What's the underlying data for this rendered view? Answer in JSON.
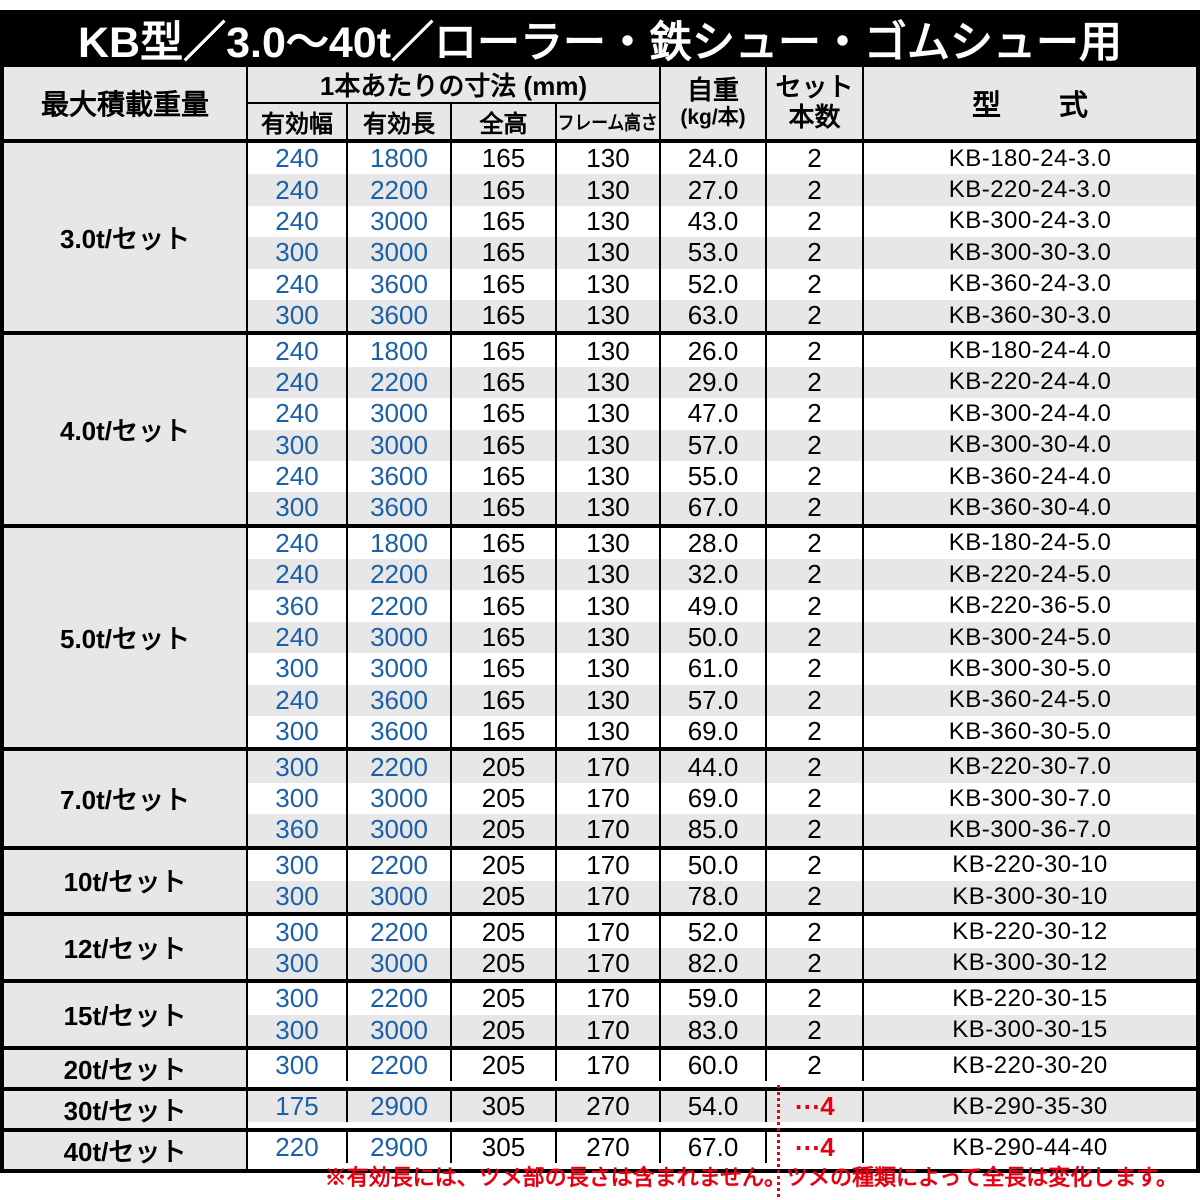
{
  "title": "KB型／3.0〜40t／ローラー・鉄シュー・ゴムシュー用",
  "table": {
    "headers": {
      "max_load": "最大積載重量",
      "dims_group": "1本あたりの寸法 (mm)",
      "eff_width": "有効幅",
      "eff_length": "有効長",
      "total_height": "全高",
      "frame_height": "フレーム高さ",
      "unit_weight_line1": "自重",
      "unit_weight_line2": "(kg/本)",
      "set_qty_line1": "セット",
      "set_qty_line2": "本数",
      "model": "型　　式"
    },
    "annotation_leader": "⋯",
    "sections": [
      {
        "label": "3.0t/セット",
        "rows": [
          {
            "w": "240",
            "l": "1800",
            "h": "165",
            "f": "130",
            "kg": "24.0",
            "qty": "2",
            "model": "KB-180-24-3.0"
          },
          {
            "w": "240",
            "l": "2200",
            "h": "165",
            "f": "130",
            "kg": "27.0",
            "qty": "2",
            "model": "KB-220-24-3.0"
          },
          {
            "w": "240",
            "l": "3000",
            "h": "165",
            "f": "130",
            "kg": "43.0",
            "qty": "2",
            "model": "KB-300-24-3.0"
          },
          {
            "w": "300",
            "l": "3000",
            "h": "165",
            "f": "130",
            "kg": "53.0",
            "qty": "2",
            "model": "KB-300-30-3.0"
          },
          {
            "w": "240",
            "l": "3600",
            "h": "165",
            "f": "130",
            "kg": "52.0",
            "qty": "2",
            "model": "KB-360-24-3.0"
          },
          {
            "w": "300",
            "l": "3600",
            "h": "165",
            "f": "130",
            "kg": "63.0",
            "qty": "2",
            "model": "KB-360-30-3.0"
          }
        ]
      },
      {
        "label": "4.0t/セット",
        "rows": [
          {
            "w": "240",
            "l": "1800",
            "h": "165",
            "f": "130",
            "kg": "26.0",
            "qty": "2",
            "model": "KB-180-24-4.0"
          },
          {
            "w": "240",
            "l": "2200",
            "h": "165",
            "f": "130",
            "kg": "29.0",
            "qty": "2",
            "model": "KB-220-24-4.0"
          },
          {
            "w": "240",
            "l": "3000",
            "h": "165",
            "f": "130",
            "kg": "47.0",
            "qty": "2",
            "model": "KB-300-24-4.0"
          },
          {
            "w": "300",
            "l": "3000",
            "h": "165",
            "f": "130",
            "kg": "57.0",
            "qty": "2",
            "model": "KB-300-30-4.0"
          },
          {
            "w": "240",
            "l": "3600",
            "h": "165",
            "f": "130",
            "kg": "55.0",
            "qty": "2",
            "model": "KB-360-24-4.0"
          },
          {
            "w": "300",
            "l": "3600",
            "h": "165",
            "f": "130",
            "kg": "67.0",
            "qty": "2",
            "model": "KB-360-30-4.0"
          }
        ]
      },
      {
        "label": "5.0t/セット",
        "rows": [
          {
            "w": "240",
            "l": "1800",
            "h": "165",
            "f": "130",
            "kg": "28.0",
            "qty": "2",
            "model": "KB-180-24-5.0"
          },
          {
            "w": "240",
            "l": "2200",
            "h": "165",
            "f": "130",
            "kg": "32.0",
            "qty": "2",
            "model": "KB-220-24-5.0"
          },
          {
            "w": "360",
            "l": "2200",
            "h": "165",
            "f": "130",
            "kg": "49.0",
            "qty": "2",
            "model": "KB-220-36-5.0"
          },
          {
            "w": "240",
            "l": "3000",
            "h": "165",
            "f": "130",
            "kg": "50.0",
            "qty": "2",
            "model": "KB-300-24-5.0"
          },
          {
            "w": "300",
            "l": "3000",
            "h": "165",
            "f": "130",
            "kg": "61.0",
            "qty": "2",
            "model": "KB-300-30-5.0"
          },
          {
            "w": "240",
            "l": "3600",
            "h": "165",
            "f": "130",
            "kg": "57.0",
            "qty": "2",
            "model": "KB-360-24-5.0"
          },
          {
            "w": "300",
            "l": "3600",
            "h": "165",
            "f": "130",
            "kg": "69.0",
            "qty": "2",
            "model": "KB-360-30-5.0"
          }
        ]
      },
      {
        "label": "7.0t/セット",
        "rows": [
          {
            "w": "300",
            "l": "2200",
            "h": "205",
            "f": "170",
            "kg": "44.0",
            "qty": "2",
            "model": "KB-220-30-7.0"
          },
          {
            "w": "300",
            "l": "3000",
            "h": "205",
            "f": "170",
            "kg": "69.0",
            "qty": "2",
            "model": "KB-300-30-7.0"
          },
          {
            "w": "360",
            "l": "3000",
            "h": "205",
            "f": "170",
            "kg": "85.0",
            "qty": "2",
            "model": "KB-300-36-7.0"
          }
        ]
      },
      {
        "label": "10t/セット",
        "rows": [
          {
            "w": "300",
            "l": "2200",
            "h": "205",
            "f": "170",
            "kg": "50.0",
            "qty": "2",
            "model": "KB-220-30-10"
          },
          {
            "w": "300",
            "l": "3000",
            "h": "205",
            "f": "170",
            "kg": "78.0",
            "qty": "2",
            "model": "KB-300-30-10"
          }
        ]
      },
      {
        "label": "12t/セット",
        "rows": [
          {
            "w": "300",
            "l": "2200",
            "h": "205",
            "f": "170",
            "kg": "52.0",
            "qty": "2",
            "model": "KB-220-30-12"
          },
          {
            "w": "300",
            "l": "3000",
            "h": "205",
            "f": "170",
            "kg": "82.0",
            "qty": "2",
            "model": "KB-300-30-12"
          }
        ]
      },
      {
        "label": "15t/セット",
        "rows": [
          {
            "w": "300",
            "l": "2200",
            "h": "205",
            "f": "170",
            "kg": "59.0",
            "qty": "2",
            "model": "KB-220-30-15"
          },
          {
            "w": "300",
            "l": "3000",
            "h": "205",
            "f": "170",
            "kg": "83.0",
            "qty": "2",
            "model": "KB-300-30-15"
          }
        ]
      },
      {
        "label": "20t/セット",
        "rows": [
          {
            "w": "300",
            "l": "2200",
            "h": "205",
            "f": "170",
            "kg": "60.0",
            "qty": "2",
            "model": "KB-220-30-20"
          }
        ]
      },
      {
        "label": "30t/セット",
        "rows": [
          {
            "w": "175",
            "l": "2900",
            "h": "305",
            "f": "270",
            "kg": "54.0",
            "qty": "4",
            "qty_red": true,
            "model": "KB-290-35-30"
          }
        ]
      },
      {
        "label": "40t/セット",
        "rows": [
          {
            "w": "220",
            "l": "2900",
            "h": "305",
            "f": "270",
            "kg": "67.0",
            "qty": "4",
            "qty_red": true,
            "model": "KB-290-44-40"
          }
        ]
      }
    ]
  },
  "footnote": "※有効長には、ツメ部の長さは含まれません。ツメの種類によって全長は変化します。",
  "colors": {
    "dimension_blue": "#1c5fa8",
    "note_red": "#e60012",
    "alt_row_gray": "#e7e7e7",
    "header_bg": "#e7e7e7",
    "title_bg": "#000000",
    "title_fg": "#ffffff"
  }
}
